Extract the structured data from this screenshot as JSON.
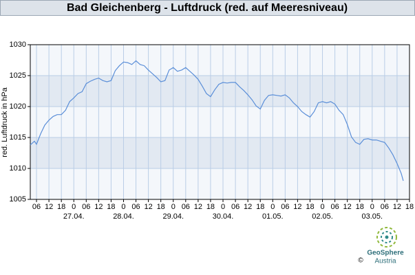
{
  "chart_data": {
    "type": "line",
    "title": "Bad Gleichenberg - Luftdruck (red. auf Meeresniveau)",
    "y_label": "red. Luftdruck in hPa",
    "x": [
      -21,
      -19,
      -18,
      -16,
      -14,
      -12,
      -10,
      -8,
      -6,
      -4,
      -2,
      0,
      2,
      4,
      6,
      8,
      10,
      12,
      14,
      16,
      18,
      20,
      22,
      24,
      26,
      28,
      30,
      32,
      34,
      36,
      38,
      40,
      42,
      44,
      46,
      48,
      50,
      52,
      54,
      56,
      58,
      60,
      62,
      64,
      66,
      68,
      70,
      72,
      74,
      76,
      78,
      80,
      82,
      84,
      86,
      88,
      90,
      92,
      94,
      96,
      98,
      100,
      102,
      104,
      106,
      108,
      110,
      112,
      114,
      116,
      118,
      120,
      122,
      124,
      126,
      128,
      130,
      132,
      134,
      136,
      138,
      140,
      142,
      144,
      146,
      148,
      150,
      152,
      154,
      156,
      158,
      159
    ],
    "series": [
      {
        "name": "Luftdruck",
        "color": "#5a8ed8",
        "values": [
          1013.8,
          1014.4,
          1013.9,
          1015.6,
          1017,
          1017.8,
          1018.4,
          1018.7,
          1018.7,
          1019.4,
          1020.8,
          1021.4,
          1022.1,
          1022.4,
          1023.7,
          1024.1,
          1024.4,
          1024.6,
          1024.2,
          1024,
          1024.2,
          1025.8,
          1026.6,
          1027.2,
          1027.1,
          1026.8,
          1027.4,
          1026.8,
          1026.6,
          1025.9,
          1025.3,
          1024.7,
          1024,
          1024.2,
          1025.9,
          1026.3,
          1025.7,
          1025.9,
          1026.3,
          1025.7,
          1025.1,
          1024.4,
          1023.3,
          1022.1,
          1021.6,
          1022.7,
          1023.6,
          1023.9,
          1023.8,
          1023.9,
          1023.9,
          1023.2,
          1022.6,
          1021.9,
          1021.1,
          1020.1,
          1019.6,
          1021,
          1021.8,
          1021.9,
          1021.8,
          1021.7,
          1021.9,
          1021.4,
          1020.6,
          1020,
          1019.2,
          1018.7,
          1018.3,
          1019.2,
          1020.6,
          1020.8,
          1020.6,
          1020.8,
          1020.4,
          1019.4,
          1018.7,
          1017.1,
          1015.1,
          1014.2,
          1013.9,
          1014.7,
          1014.8,
          1014.6,
          1014.6,
          1014.4,
          1014.2,
          1013.3,
          1012.2,
          1010.8,
          1009.2,
          1008
        ]
      }
    ],
    "xlim": [
      -21,
      162
    ],
    "xticks": [
      {
        "value": -18,
        "label": "06"
      },
      {
        "value": -12,
        "label": "12"
      },
      {
        "value": -6,
        "label": "18"
      },
      0,
      {
        "value": 6,
        "label": "06"
      },
      {
        "value": 12,
        "label": "12"
      },
      {
        "value": 18,
        "label": "18"
      },
      {
        "value": 24,
        "label": "0"
      },
      {
        "value": 30,
        "label": "06"
      },
      {
        "value": 36,
        "label": "12"
      },
      {
        "value": 42,
        "label": "18"
      },
      {
        "value": 48,
        "label": "0"
      },
      {
        "value": 54,
        "label": "06"
      },
      {
        "value": 60,
        "label": "12"
      },
      {
        "value": 66,
        "label": "18"
      },
      {
        "value": 72,
        "label": "0"
      },
      {
        "value": 78,
        "label": "06"
      },
      {
        "value": 84,
        "label": "12"
      },
      {
        "value": 90,
        "label": "18"
      },
      {
        "value": 96,
        "label": "0"
      },
      {
        "value": 102,
        "label": "06"
      },
      {
        "value": 108,
        "label": "12"
      },
      {
        "value": 114,
        "label": "18"
      },
      {
        "value": 120,
        "label": "0"
      },
      {
        "value": 126,
        "label": "06"
      },
      {
        "value": 132,
        "label": "12"
      },
      {
        "value": 138,
        "label": "18"
      },
      {
        "value": 144,
        "label": "0"
      },
      {
        "value": 150,
        "label": "06"
      },
      {
        "value": 156,
        "label": "12"
      },
      {
        "value": 162,
        "label": "18"
      }
    ],
    "x_date_labels": [
      {
        "value": 0,
        "label": "27.04."
      },
      {
        "value": 24,
        "label": "28.04."
      },
      {
        "value": 48,
        "label": "29.04."
      },
      {
        "value": 72,
        "label": "30.04."
      },
      {
        "value": 96,
        "label": "01.05."
      },
      {
        "value": 120,
        "label": "02.05."
      },
      {
        "value": 144,
        "label": "03.05."
      }
    ],
    "ylim": [
      1005,
      1030
    ],
    "yticks": [
      1005,
      1010,
      1015,
      1020,
      1025,
      1030
    ],
    "grid": true
  },
  "footer": {
    "copyright": "©",
    "logo_name": "GeoSphere",
    "logo_sub": "Austria"
  }
}
